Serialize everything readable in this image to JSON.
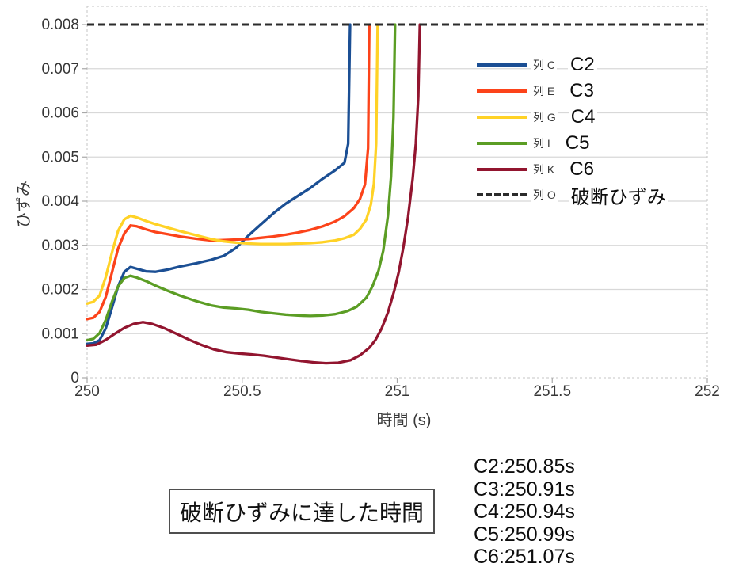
{
  "chart_data": {
    "type": "line",
    "title": "",
    "xlabel": "時間 (s)",
    "ylabel": "ひずみ",
    "xlim": [
      250,
      252
    ],
    "ylim": [
      0,
      0.008
    ],
    "grid": "horizontal-only",
    "legend_position": "inside-right",
    "x_ticks": [
      [
        250,
        "250"
      ],
      [
        250.5,
        "250.5"
      ],
      [
        251,
        "251"
      ],
      [
        251.5,
        "251.5"
      ],
      [
        252,
        "252"
      ]
    ],
    "y_ticks": [
      [
        0,
        "0"
      ],
      [
        0.001,
        "0.001"
      ],
      [
        0.002,
        "0.002"
      ],
      [
        0.003,
        "0.003"
      ],
      [
        0.004,
        "0.004"
      ],
      [
        0.005,
        "0.005"
      ],
      [
        0.006,
        "0.006"
      ],
      [
        0.007,
        "0.007"
      ],
      [
        0.008,
        "0.008"
      ]
    ],
    "colors": {
      "gridline": "#d8d8d8",
      "plot_border": "#c6c6c6",
      "tick": "#a8a8a8",
      "tick_label": "#363636"
    },
    "series": [
      {
        "name": "列 C",
        "annotation": "C2",
        "color": "#1b4f94",
        "dash": null,
        "points": [
          [
            250.0,
            0.00077
          ],
          [
            250.02,
            0.00078
          ],
          [
            250.04,
            0.00085
          ],
          [
            250.06,
            0.00112
          ],
          [
            250.08,
            0.00158
          ],
          [
            250.1,
            0.00207
          ],
          [
            250.12,
            0.0024
          ],
          [
            250.14,
            0.00251
          ],
          [
            250.16,
            0.00247
          ],
          [
            250.19,
            0.00241
          ],
          [
            250.22,
            0.0024
          ],
          [
            250.26,
            0.00245
          ],
          [
            250.3,
            0.00252
          ],
          [
            250.35,
            0.00259
          ],
          [
            250.4,
            0.00267
          ],
          [
            250.44,
            0.00276
          ],
          [
            250.48,
            0.00294
          ],
          [
            250.52,
            0.00322
          ],
          [
            250.56,
            0.00347
          ],
          [
            250.6,
            0.00372
          ],
          [
            250.64,
            0.00394
          ],
          [
            250.68,
            0.00412
          ],
          [
            250.72,
            0.0043
          ],
          [
            250.76,
            0.00451
          ],
          [
            250.8,
            0.0047
          ],
          [
            250.83,
            0.00487
          ],
          [
            250.842,
            0.0053
          ],
          [
            250.848,
            0.008
          ]
        ]
      },
      {
        "name": "列 E",
        "annotation": "C3",
        "color": "#fc431a",
        "dash": null,
        "points": [
          [
            250.0,
            0.00133
          ],
          [
            250.02,
            0.00136
          ],
          [
            250.04,
            0.00149
          ],
          [
            250.06,
            0.00183
          ],
          [
            250.08,
            0.00238
          ],
          [
            250.1,
            0.00293
          ],
          [
            250.12,
            0.00327
          ],
          [
            250.14,
            0.00345
          ],
          [
            250.16,
            0.00343
          ],
          [
            250.19,
            0.00336
          ],
          [
            250.22,
            0.0033
          ],
          [
            250.26,
            0.00325
          ],
          [
            250.3,
            0.0032
          ],
          [
            250.35,
            0.00315
          ],
          [
            250.4,
            0.00311
          ],
          [
            250.44,
            0.00312
          ],
          [
            250.48,
            0.00313
          ],
          [
            250.52,
            0.00314
          ],
          [
            250.56,
            0.00317
          ],
          [
            250.6,
            0.0032
          ],
          [
            250.64,
            0.00324
          ],
          [
            250.68,
            0.00329
          ],
          [
            250.72,
            0.00335
          ],
          [
            250.76,
            0.00343
          ],
          [
            250.8,
            0.00354
          ],
          [
            250.83,
            0.00366
          ],
          [
            250.86,
            0.00384
          ],
          [
            250.88,
            0.00405
          ],
          [
            250.896,
            0.00438
          ],
          [
            250.906,
            0.0052
          ],
          [
            250.91,
            0.008
          ]
        ]
      },
      {
        "name": "列 G",
        "annotation": "C4",
        "color": "#ffd226",
        "dash": null,
        "points": [
          [
            250.0,
            0.00168
          ],
          [
            250.02,
            0.00172
          ],
          [
            250.04,
            0.00186
          ],
          [
            250.06,
            0.00228
          ],
          [
            250.08,
            0.00283
          ],
          [
            250.1,
            0.00333
          ],
          [
            250.12,
            0.00359
          ],
          [
            250.14,
            0.00367
          ],
          [
            250.16,
            0.00363
          ],
          [
            250.19,
            0.00355
          ],
          [
            250.22,
            0.00348
          ],
          [
            250.26,
            0.0034
          ],
          [
            250.3,
            0.00332
          ],
          [
            250.35,
            0.00323
          ],
          [
            250.4,
            0.00314
          ],
          [
            250.44,
            0.00309
          ],
          [
            250.48,
            0.00306
          ],
          [
            250.52,
            0.00304
          ],
          [
            250.56,
            0.00303
          ],
          [
            250.6,
            0.00303
          ],
          [
            250.64,
            0.00303
          ],
          [
            250.68,
            0.00304
          ],
          [
            250.72,
            0.00305
          ],
          [
            250.76,
            0.00307
          ],
          [
            250.8,
            0.00311
          ],
          [
            250.83,
            0.00316
          ],
          [
            250.86,
            0.00324
          ],
          [
            250.88,
            0.00337
          ],
          [
            250.9,
            0.00358
          ],
          [
            250.915,
            0.00392
          ],
          [
            250.925,
            0.0044
          ],
          [
            250.932,
            0.0053
          ],
          [
            250.937,
            0.008
          ]
        ]
      },
      {
        "name": "列 I",
        "annotation": "C5",
        "color": "#5b9d24",
        "dash": null,
        "points": [
          [
            250.0,
            0.00085
          ],
          [
            250.02,
            0.00088
          ],
          [
            250.04,
            0.00101
          ],
          [
            250.06,
            0.00131
          ],
          [
            250.08,
            0.00172
          ],
          [
            250.1,
            0.00207
          ],
          [
            250.12,
            0.00226
          ],
          [
            250.14,
            0.00231
          ],
          [
            250.16,
            0.00227
          ],
          [
            250.19,
            0.00219
          ],
          [
            250.22,
            0.00209
          ],
          [
            250.26,
            0.00197
          ],
          [
            250.3,
            0.00186
          ],
          [
            250.35,
            0.00174
          ],
          [
            250.4,
            0.00164
          ],
          [
            250.44,
            0.00159
          ],
          [
            250.48,
            0.00157
          ],
          [
            250.52,
            0.00154
          ],
          [
            250.56,
            0.00149
          ],
          [
            250.6,
            0.00146
          ],
          [
            250.64,
            0.00143
          ],
          [
            250.68,
            0.00141
          ],
          [
            250.72,
            0.0014
          ],
          [
            250.76,
            0.00141
          ],
          [
            250.8,
            0.00144
          ],
          [
            250.84,
            0.00151
          ],
          [
            250.87,
            0.00161
          ],
          [
            250.9,
            0.00181
          ],
          [
            250.92,
            0.00207
          ],
          [
            250.94,
            0.00243
          ],
          [
            250.955,
            0.00288
          ],
          [
            250.97,
            0.00367
          ],
          [
            250.98,
            0.00455
          ],
          [
            250.988,
            0.0059
          ],
          [
            250.993,
            0.008
          ]
        ]
      },
      {
        "name": "列 K",
        "annotation": "C6",
        "color": "#92152f",
        "dash": null,
        "points": [
          [
            250.0,
            0.00073
          ],
          [
            250.03,
            0.00075
          ],
          [
            250.06,
            0.00086
          ],
          [
            250.09,
            0.001
          ],
          [
            250.12,
            0.00113
          ],
          [
            250.15,
            0.00122
          ],
          [
            250.18,
            0.00126
          ],
          [
            250.21,
            0.00122
          ],
          [
            250.25,
            0.00112
          ],
          [
            250.29,
            0.00099
          ],
          [
            250.33,
            0.00086
          ],
          [
            250.37,
            0.00074
          ],
          [
            250.41,
            0.00064
          ],
          [
            250.45,
            0.00058
          ],
          [
            250.49,
            0.00055
          ],
          [
            250.53,
            0.00053
          ],
          [
            250.57,
            0.0005
          ],
          [
            250.61,
            0.00046
          ],
          [
            250.65,
            0.00042
          ],
          [
            250.69,
            0.00038
          ],
          [
            250.73,
            0.00035
          ],
          [
            250.77,
            0.00033
          ],
          [
            250.81,
            0.00034
          ],
          [
            250.85,
            0.0004
          ],
          [
            250.88,
            0.00051
          ],
          [
            250.91,
            0.00068
          ],
          [
            250.93,
            0.00086
          ],
          [
            250.95,
            0.00112
          ],
          [
            250.97,
            0.00148
          ],
          [
            250.99,
            0.00196
          ],
          [
            251.005,
            0.0024
          ],
          [
            251.02,
            0.00296
          ],
          [
            251.035,
            0.00364
          ],
          [
            251.05,
            0.00452
          ],
          [
            251.06,
            0.0053
          ],
          [
            251.068,
            0.00636
          ],
          [
            251.073,
            0.008
          ]
        ]
      },
      {
        "name": "列 O",
        "annotation": "破断ひずみ",
        "color": "#2b2b2b",
        "dash": "9 5",
        "points": [
          [
            250.0,
            0.008
          ],
          [
            252.0,
            0.008
          ]
        ]
      }
    ]
  },
  "caption_box": {
    "text": "破断ひずみに達した時間"
  },
  "times_list": [
    "C2:250.85s",
    "C3:250.91s",
    "C4:250.94s",
    "C5:250.99s",
    "C6:251.07s"
  ]
}
